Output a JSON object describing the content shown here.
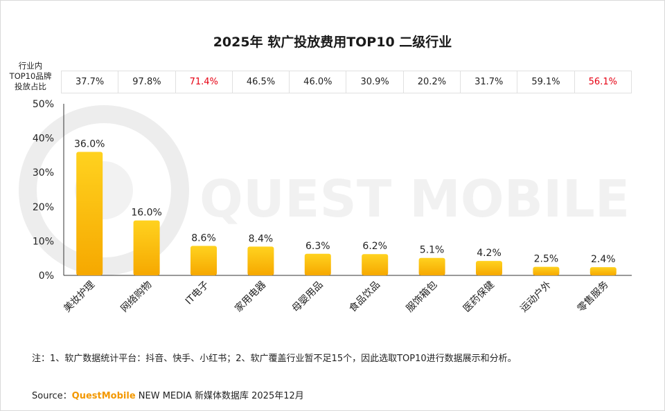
{
  "chart_data": {
    "type": "bar",
    "title": "2025年 软广投放费用TOP10 二级行业",
    "categories": [
      "美妆护理",
      "网络购物",
      "IT电子",
      "家用电器",
      "母婴用品",
      "食品饮品",
      "服饰箱包",
      "医药保健",
      "运动户外",
      "零售服务"
    ],
    "values": [
      36.0,
      16.0,
      8.6,
      8.4,
      6.3,
      6.2,
      5.1,
      4.2,
      2.5,
      2.4
    ],
    "value_labels": [
      "36.0%",
      "16.0%",
      "8.6%",
      "8.4%",
      "6.3%",
      "6.2%",
      "5.1%",
      "4.2%",
      "2.5%",
      "2.4%"
    ],
    "y_ticks": [
      "0%",
      "10%",
      "20%",
      "30%",
      "40%",
      "50%"
    ],
    "ylim": [
      0,
      50
    ],
    "xlabel": "",
    "ylabel": "",
    "grid": false,
    "bar_color_top": "#ffd21f",
    "bar_color_bottom": "#f6a800"
  },
  "share_row": {
    "label": "行业内TOP10品牌投放占比",
    "label_lines": [
      "行业内",
      "TOP10品牌",
      "投放占比"
    ],
    "values": [
      "37.7%",
      "97.8%",
      "71.4%",
      "46.5%",
      "46.0%",
      "30.9%",
      "20.2%",
      "31.7%",
      "59.1%",
      "56.1%"
    ],
    "highlight": [
      false,
      false,
      true,
      false,
      false,
      false,
      false,
      false,
      false,
      true
    ],
    "highlight_color": "#e60012"
  },
  "watermark": "QUEST MOBILE",
  "note": "注：1、软广数据统计平台：抖音、快手、小红书；2、软广覆盖行业暂不足15个，因此选取TOP10进行数据展示和分析。",
  "source": {
    "prefix": "Source：",
    "brand": "QuestMobile",
    "rest": " NEW MEDIA 新媒体数据库 2025年12月"
  }
}
